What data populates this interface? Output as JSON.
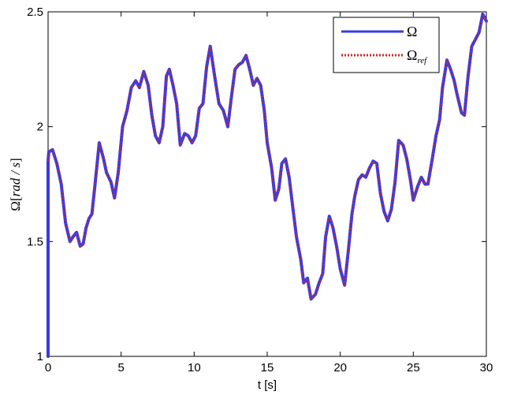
{
  "chart_data": {
    "type": "line",
    "xlabel": "t [s]",
    "ylabel": "Ω[rad / s]",
    "ylabel_parts": {
      "symbol": "Ω[",
      "unit": "rad / s",
      "close": "]"
    },
    "xlim": [
      0,
      30
    ],
    "ylim": [
      1,
      2.5
    ],
    "xticks": [
      0,
      5,
      10,
      15,
      20,
      25,
      30
    ],
    "yticks": [
      1,
      1.5,
      2,
      2.5
    ],
    "xtick_labels": [
      "0",
      "5",
      "10",
      "15",
      "20",
      "25",
      "30"
    ],
    "ytick_labels": [
      "1",
      "1.5",
      "2",
      "2.5"
    ],
    "grid": false,
    "legend_position": "top-right",
    "series": [
      {
        "name": "Ω",
        "color": "#3a3ae0",
        "style": "solid",
        "x": [
          0,
          0,
          0.05,
          0.3,
          0.6,
          0.9,
          1.2,
          1.5,
          1.7,
          1.95,
          2.2,
          2.4,
          2.6,
          2.8,
          3.0,
          3.2,
          3.5,
          3.8,
          4.0,
          4.3,
          4.55,
          4.8,
          5.1,
          5.4,
          5.7,
          6.0,
          6.25,
          6.55,
          6.85,
          7.1,
          7.35,
          7.6,
          7.85,
          8.1,
          8.3,
          8.55,
          8.8,
          9.05,
          9.35,
          9.6,
          9.85,
          10.1,
          10.35,
          10.6,
          10.85,
          11.1,
          11.4,
          11.7,
          12.0,
          12.3,
          12.55,
          12.8,
          13.05,
          13.3,
          13.55,
          13.8,
          14.05,
          14.3,
          14.55,
          14.8,
          15.0,
          15.3,
          15.55,
          15.8,
          16.0,
          16.25,
          16.5,
          16.75,
          17.0,
          17.3,
          17.5,
          17.75,
          18.0,
          18.3,
          18.55,
          18.8,
          19.0,
          19.25,
          19.5,
          19.75,
          20.0,
          20.3,
          20.55,
          20.8,
          21.0,
          21.25,
          21.5,
          21.75,
          22.0,
          22.25,
          22.5,
          22.75,
          23.0,
          23.25,
          23.5,
          23.75,
          24.0,
          24.3,
          24.55,
          24.8,
          25.0,
          25.3,
          25.55,
          25.8,
          26.0,
          26.3,
          26.55,
          26.8,
          27.0,
          27.3,
          27.55,
          27.8,
          28.0,
          28.3,
          28.5,
          28.75,
          29.0,
          29.25,
          29.5,
          29.75,
          30.0
        ],
        "values": [
          1.0,
          1.85,
          1.89,
          1.9,
          1.84,
          1.75,
          1.58,
          1.5,
          1.52,
          1.54,
          1.48,
          1.49,
          1.56,
          1.6,
          1.62,
          1.74,
          1.93,
          1.86,
          1.8,
          1.76,
          1.69,
          1.8,
          2.0,
          2.07,
          2.17,
          2.2,
          2.17,
          2.24,
          2.18,
          2.05,
          1.96,
          1.93,
          2.0,
          2.22,
          2.25,
          2.18,
          2.1,
          1.92,
          1.97,
          1.96,
          1.93,
          1.96,
          2.08,
          2.1,
          2.26,
          2.35,
          2.22,
          2.1,
          2.07,
          2.0,
          2.13,
          2.25,
          2.27,
          2.28,
          2.31,
          2.25,
          2.18,
          2.21,
          2.18,
          2.07,
          1.93,
          1.82,
          1.68,
          1.73,
          1.84,
          1.86,
          1.78,
          1.65,
          1.52,
          1.42,
          1.32,
          1.34,
          1.25,
          1.27,
          1.32,
          1.36,
          1.52,
          1.61,
          1.56,
          1.48,
          1.38,
          1.31,
          1.46,
          1.62,
          1.7,
          1.77,
          1.79,
          1.78,
          1.82,
          1.85,
          1.84,
          1.71,
          1.63,
          1.59,
          1.64,
          1.76,
          1.94,
          1.92,
          1.86,
          1.77,
          1.68,
          1.74,
          1.78,
          1.75,
          1.75,
          1.86,
          1.96,
          2.03,
          2.17,
          2.29,
          2.25,
          2.2,
          2.14,
          2.06,
          2.05,
          2.22,
          2.35,
          2.38,
          2.41,
          2.49,
          2.46
        ]
      },
      {
        "name": "Ω",
        "name_subscript": "ref",
        "color": "#cc2a2a",
        "style": "dotted",
        "x": [
          0,
          0.05,
          0.3,
          0.6,
          0.9,
          1.2,
          1.5,
          1.7,
          1.95,
          2.2,
          2.4,
          2.6,
          2.8,
          3.0,
          3.2,
          3.5,
          3.8,
          4.0,
          4.3,
          4.55,
          4.8,
          5.1,
          5.4,
          5.7,
          6.0,
          6.25,
          6.55,
          6.85,
          7.1,
          7.35,
          7.6,
          7.85,
          8.1,
          8.3,
          8.55,
          8.8,
          9.05,
          9.35,
          9.6,
          9.85,
          10.1,
          10.35,
          10.6,
          10.85,
          11.1,
          11.4,
          11.7,
          12.0,
          12.3,
          12.55,
          12.8,
          13.05,
          13.3,
          13.55,
          13.8,
          14.05,
          14.3,
          14.55,
          14.8,
          15.0,
          15.3,
          15.55,
          15.8,
          16.0,
          16.25,
          16.5,
          16.75,
          17.0,
          17.3,
          17.5,
          17.75,
          18.0,
          18.3,
          18.55,
          18.8,
          19.0,
          19.25,
          19.5,
          19.75,
          20.0,
          20.3,
          20.55,
          20.8,
          21.0,
          21.25,
          21.5,
          21.75,
          22.0,
          22.25,
          22.5,
          22.75,
          23.0,
          23.25,
          23.5,
          23.75,
          24.0,
          24.3,
          24.55,
          24.8,
          25.0,
          25.3,
          25.55,
          25.8,
          26.0,
          26.3,
          26.55,
          26.8,
          27.0,
          27.3,
          27.55,
          27.8,
          28.0,
          28.3,
          28.5,
          28.75,
          29.0,
          29.25,
          29.5,
          29.75,
          30.0
        ],
        "values": [
          1.85,
          1.89,
          1.9,
          1.84,
          1.75,
          1.58,
          1.5,
          1.52,
          1.54,
          1.48,
          1.49,
          1.56,
          1.6,
          1.62,
          1.74,
          1.93,
          1.86,
          1.8,
          1.76,
          1.69,
          1.8,
          2.0,
          2.07,
          2.17,
          2.2,
          2.17,
          2.24,
          2.18,
          2.05,
          1.96,
          1.93,
          2.0,
          2.22,
          2.25,
          2.18,
          2.1,
          1.92,
          1.97,
          1.96,
          1.93,
          1.96,
          2.08,
          2.1,
          2.26,
          2.35,
          2.22,
          2.1,
          2.07,
          2.0,
          2.13,
          2.25,
          2.27,
          2.28,
          2.31,
          2.25,
          2.18,
          2.21,
          2.18,
          2.07,
          1.93,
          1.82,
          1.68,
          1.73,
          1.84,
          1.86,
          1.78,
          1.65,
          1.52,
          1.42,
          1.32,
          1.34,
          1.25,
          1.27,
          1.32,
          1.36,
          1.52,
          1.61,
          1.56,
          1.48,
          1.38,
          1.31,
          1.46,
          1.62,
          1.7,
          1.77,
          1.79,
          1.78,
          1.82,
          1.85,
          1.84,
          1.71,
          1.63,
          1.59,
          1.64,
          1.76,
          1.94,
          1.92,
          1.86,
          1.77,
          1.68,
          1.74,
          1.78,
          1.75,
          1.75,
          1.86,
          1.96,
          2.03,
          2.17,
          2.29,
          2.25,
          2.2,
          2.14,
          2.06,
          2.05,
          2.22,
          2.35,
          2.38,
          2.41,
          2.49,
          2.46
        ]
      }
    ]
  }
}
